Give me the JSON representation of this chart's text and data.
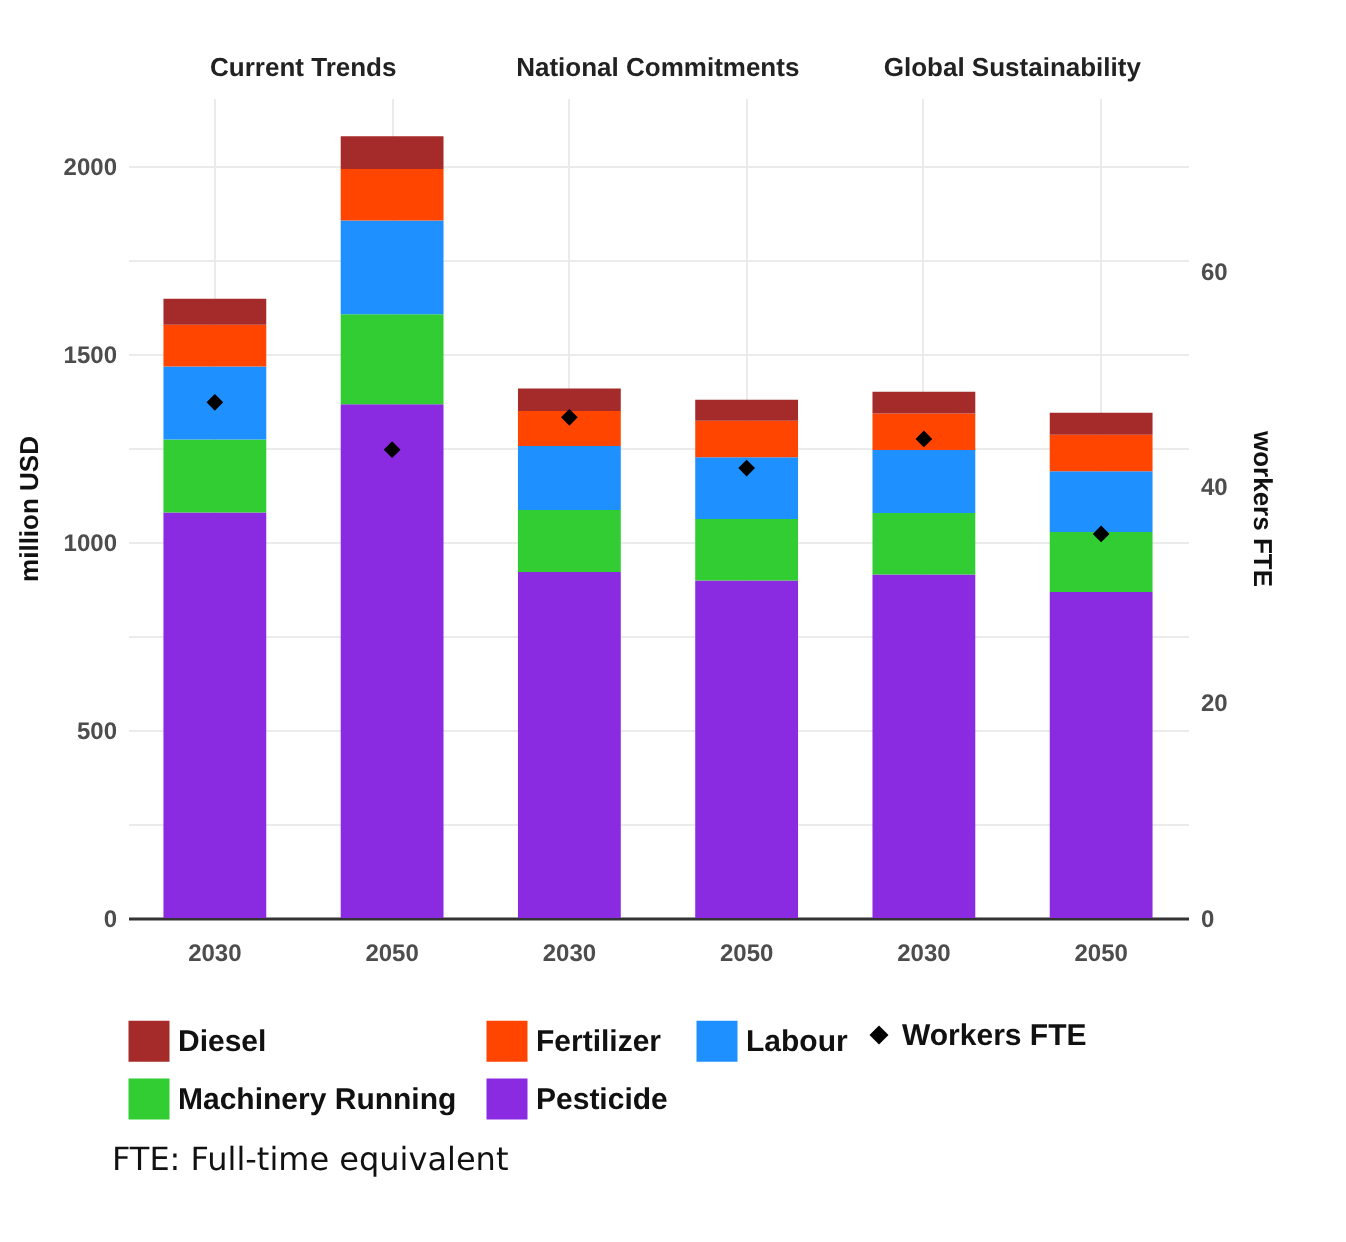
{
  "chart_data": {
    "type": "bar",
    "ylabel": "million USD",
    "y2label": "workers FTE",
    "stacked": true,
    "grid": true,
    "legend": "bottom",
    "categories": [
      "2030",
      "2050",
      "2030",
      "2050",
      "2030",
      "2050"
    ],
    "ylim": [
      0,
      2180
    ],
    "yticks": [
      0,
      {
        "value": 250,
        "label": null
      },
      500,
      {
        "value": 750,
        "label": null
      },
      1000,
      {
        "value": 1250,
        "label": null
      },
      1500,
      {
        "value": 1750,
        "label": null
      },
      2000
    ],
    "y2lim": [
      0,
      76
    ],
    "y2ticks": [
      0,
      20,
      40,
      60
    ],
    "annotations": [
      "Current Trends",
      "National Commitments",
      "Global Sustainability",
      "FTE: Full-time equivalent"
    ],
    "series": [
      {
        "name": "Pesticide",
        "color": "#8a2be2",
        "values": [
          1078,
          1366,
          920,
          897,
          913,
          867
        ]
      },
      {
        "name": "Machinery Running",
        "color": "#32cd32",
        "values": [
          194,
          239,
          165,
          164,
          164,
          159
        ]
      },
      {
        "name": "Labour",
        "color": "#1e90ff",
        "values": [
          194,
          249,
          170,
          164,
          167,
          162
        ]
      },
      {
        "name": "Fertilizer",
        "color": "#ff4500",
        "values": [
          111,
          137,
          93,
          97,
          97,
          97
        ]
      },
      {
        "name": "Diesel",
        "color": "#a52a2a",
        "values": [
          69,
          87,
          60,
          56,
          58,
          58
        ]
      },
      {
        "name": "Workers FTE",
        "type": "scatter",
        "axis": "y2",
        "marker": "diamond",
        "color": "#000000",
        "values": [
          47.8,
          43.4,
          46.4,
          41.7,
          44.4,
          35.6
        ]
      }
    ]
  }
}
